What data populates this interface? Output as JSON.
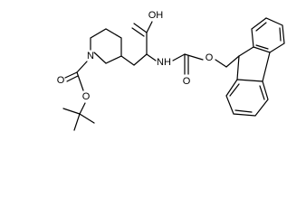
{
  "atom_labels": [
    "OH",
    "N",
    "NH",
    "O",
    "O",
    "O",
    "O"
  ]
}
